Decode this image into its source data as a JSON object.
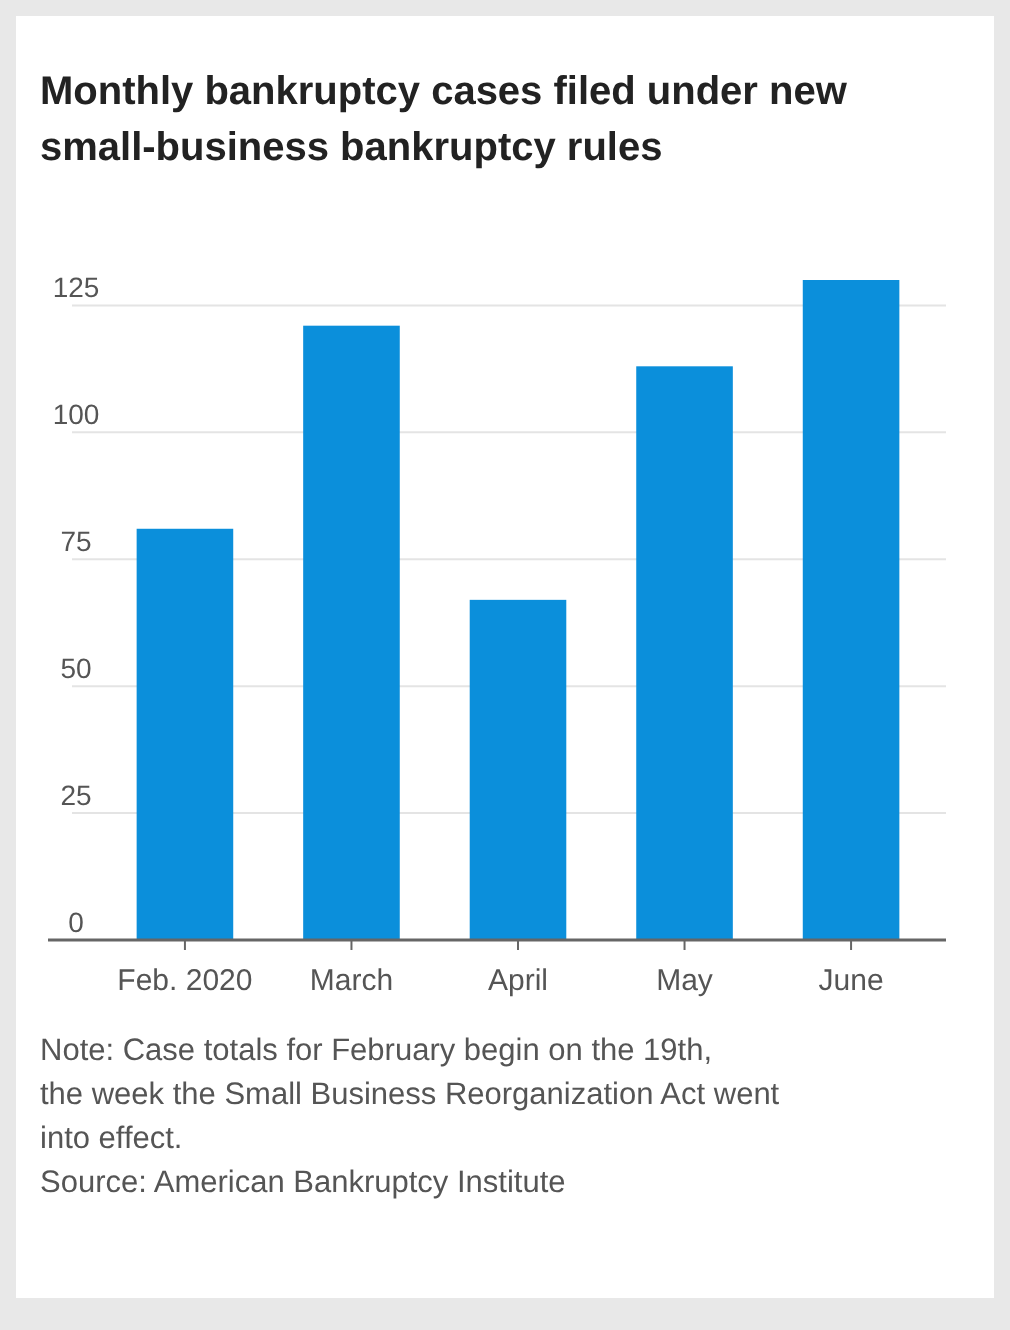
{
  "chart_data": {
    "type": "bar",
    "title": "Monthly bankruptcy cases filed under new small-business bankruptcy rules",
    "categories": [
      "Feb. 2020",
      "March",
      "April",
      "May",
      "June"
    ],
    "values": [
      81,
      121,
      67,
      113,
      130
    ],
    "color": "#0b8fdb",
    "ylim": [
      0,
      130
    ],
    "yticks": [
      0,
      25,
      50,
      75,
      100,
      125
    ],
    "grid": "y",
    "annotations": [
      "Note: Case totals for February begin on the 19th, the week the Small Business Reorganization Act went into effect.",
      "Source: American Bankruptcy Institute"
    ]
  }
}
